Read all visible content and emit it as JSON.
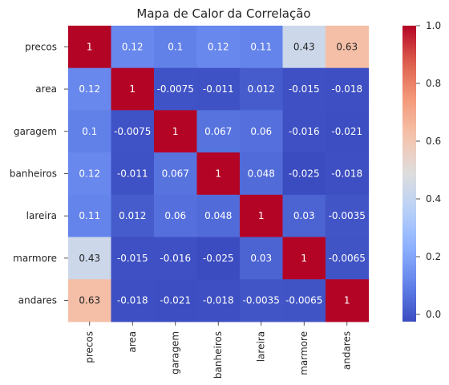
{
  "chart_data": {
    "type": "heatmap",
    "title": "Mapa de Calor da Correlação",
    "xlabel": "",
    "ylabel": "",
    "row_labels": [
      "precos",
      "area",
      "garagem",
      "banheiros",
      "lareira",
      "marmore",
      "andares"
    ],
    "col_labels": [
      "precos",
      "area",
      "garagem",
      "banheiros",
      "lareira",
      "marmore",
      "andares"
    ],
    "values": [
      [
        1,
        0.12,
        0.1,
        0.12,
        0.11,
        0.43,
        0.63
      ],
      [
        0.12,
        1,
        -0.0075,
        -0.011,
        0.012,
        -0.015,
        -0.018
      ],
      [
        0.1,
        -0.0075,
        1,
        0.067,
        0.06,
        -0.016,
        -0.021
      ],
      [
        0.12,
        -0.011,
        0.067,
        1,
        0.048,
        -0.025,
        -0.018
      ],
      [
        0.11,
        0.012,
        0.06,
        0.048,
        1,
        0.03,
        -0.0035
      ],
      [
        0.43,
        -0.015,
        -0.016,
        -0.025,
        0.03,
        1,
        -0.0065
      ],
      [
        0.63,
        -0.018,
        -0.021,
        -0.018,
        -0.0035,
        -0.0065,
        1
      ]
    ],
    "value_labels": [
      [
        "1",
        "0.12",
        "0.1",
        "0.12",
        "0.11",
        "0.43",
        "0.63"
      ],
      [
        "0.12",
        "1",
        "-0.0075",
        "-0.011",
        "0.012",
        "-0.015",
        "-0.018"
      ],
      [
        "0.1",
        "-0.0075",
        "1",
        "0.067",
        "0.06",
        "-0.016",
        "-0.021"
      ],
      [
        "0.12",
        "-0.011",
        "0.067",
        "1",
        "0.048",
        "-0.025",
        "-0.018"
      ],
      [
        "0.11",
        "0.012",
        "0.06",
        "0.048",
        "1",
        "0.03",
        "-0.0035"
      ],
      [
        "0.43",
        "-0.015",
        "-0.016",
        "-0.025",
        "0.03",
        "1",
        "-0.0065"
      ],
      [
        "0.63",
        "-0.018",
        "-0.021",
        "-0.018",
        "-0.0035",
        "-0.0065",
        "1"
      ]
    ],
    "colormap": "coolwarm",
    "colorbar": {
      "range": [
        -0.025,
        1
      ],
      "ticks": [
        0,
        0.2,
        0.4,
        0.6,
        0.8,
        1.0
      ],
      "tick_labels": [
        "0.0",
        "0.2",
        "0.4",
        "0.6",
        "0.8",
        "1.0"
      ]
    },
    "grid": false,
    "legend": "colorbar-right"
  }
}
